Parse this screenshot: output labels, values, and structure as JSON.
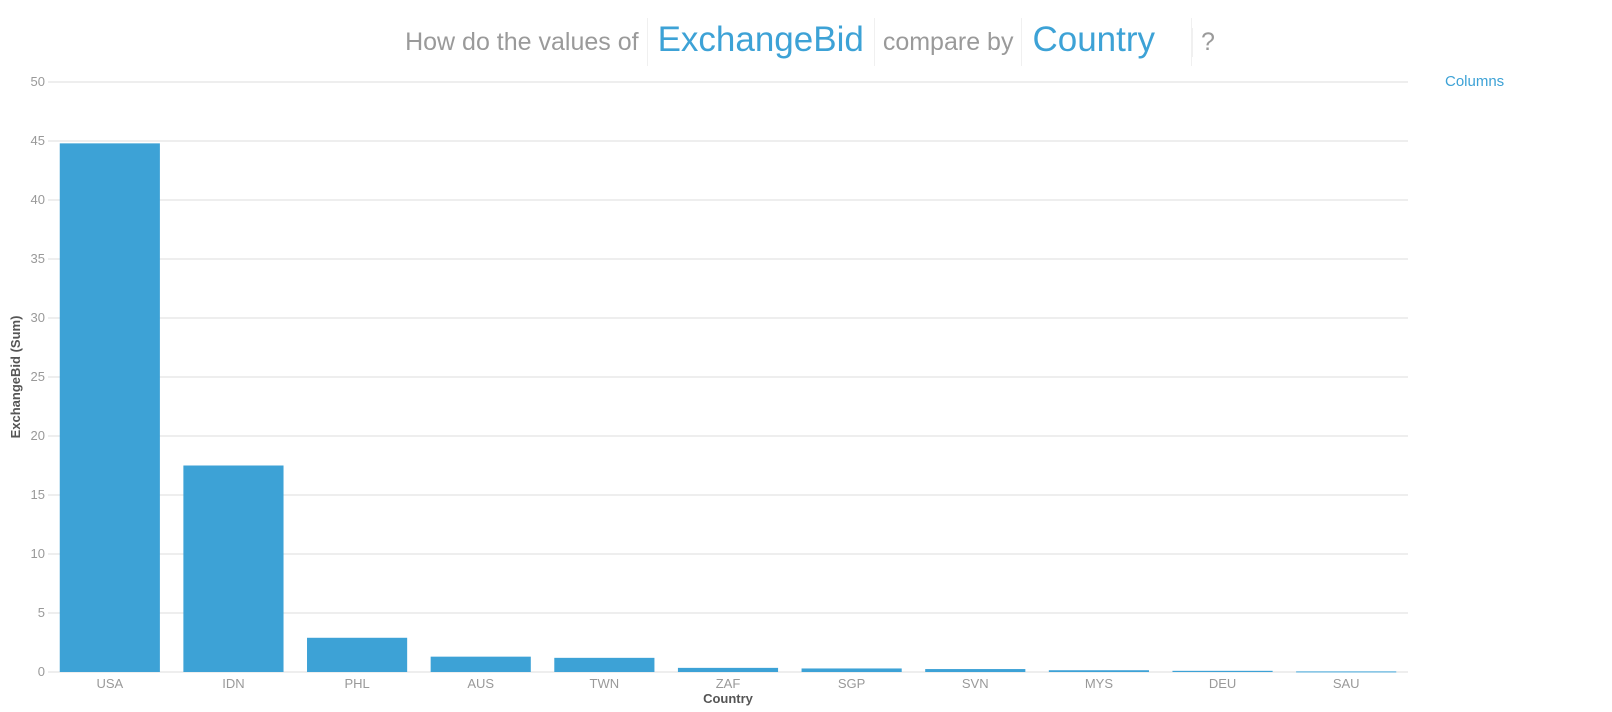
{
  "question": {
    "prefix": "How do the values of",
    "measure": "ExchangeBid",
    "middle": "compare by",
    "dimension": "Country",
    "suffix": "?"
  },
  "chart_type_link": "Columns",
  "colors": {
    "bar": "#3da2d6",
    "accent": "#3da2d6",
    "muted_text": "#9a9a9a"
  },
  "chart_data": {
    "type": "bar",
    "categories": [
      "USA",
      "IDN",
      "PHL",
      "AUS",
      "TWN",
      "ZAF",
      "SGP",
      "SVN",
      "MYS",
      "DEU",
      "SAU"
    ],
    "values": [
      44.8,
      17.5,
      2.9,
      1.3,
      1.2,
      0.35,
      0.3,
      0.25,
      0.15,
      0.1,
      0.05
    ],
    "xlabel": "Country",
    "ylabel": "ExchangeBid (Sum)",
    "ylim": [
      0,
      50
    ],
    "yticks": [
      0,
      5,
      10,
      15,
      20,
      25,
      30,
      35,
      40,
      45,
      50
    ],
    "grid": true
  }
}
